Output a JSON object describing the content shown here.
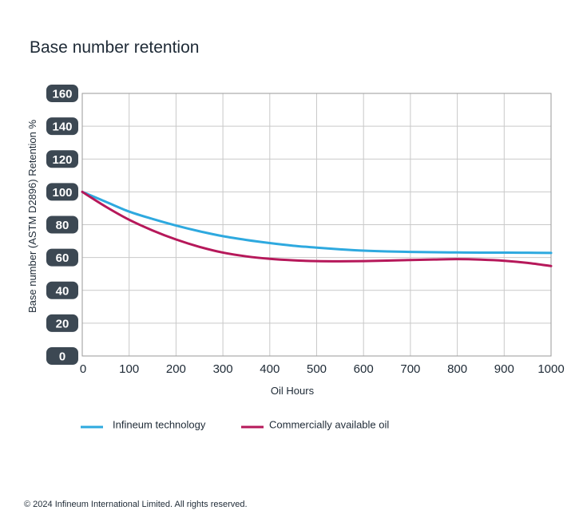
{
  "chart_data": {
    "type": "line",
    "title": "Base number retention",
    "xlabel": "Oil Hours",
    "ylabel": "Base number (ASTM D2896) Retention %",
    "xlim": [
      0,
      1000
    ],
    "ylim": [
      0,
      160
    ],
    "xticks": [
      "0",
      "100",
      "200",
      "300",
      "400",
      "500",
      "600",
      "700",
      "800",
      "900",
      "1000"
    ],
    "yticks": [
      "0",
      "20",
      "40",
      "60",
      "80",
      "100",
      "120",
      "140",
      "160"
    ],
    "grid": true,
    "legend_position": "bottom-left",
    "x": [
      0,
      50,
      100,
      150,
      200,
      250,
      300,
      350,
      400,
      450,
      500,
      550,
      600,
      650,
      700,
      750,
      800,
      850,
      900,
      950,
      1000
    ],
    "series": [
      {
        "name": "Infineum technology",
        "color": "#2ea9df",
        "values": [
          100,
          94,
          88,
          83.5,
          79.5,
          76,
          73,
          70.7,
          68.8,
          67.2,
          66,
          65,
          64.2,
          63.7,
          63.4,
          63.2,
          63.1,
          63,
          63,
          62.9,
          62.8
        ]
      },
      {
        "name": "Commercially available oil",
        "color": "#b6185a",
        "values": [
          100,
          91,
          83,
          76.5,
          71,
          66.5,
          63,
          60.7,
          59.2,
          58.3,
          57.8,
          57.7,
          57.8,
          58.1,
          58.5,
          58.8,
          59,
          58.7,
          58,
          56.7,
          54.8
        ]
      }
    ]
  },
  "footer": {
    "copyright": "© 2024 Infineum International Limited. All rights reserved."
  }
}
